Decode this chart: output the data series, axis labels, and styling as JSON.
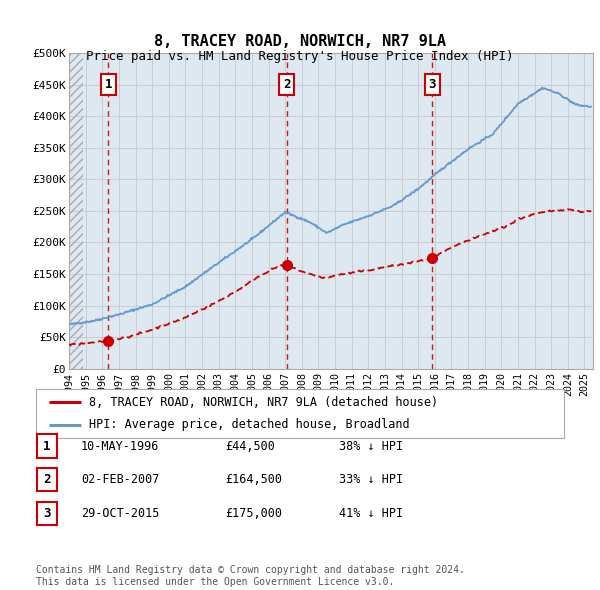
{
  "title": "8, TRACEY ROAD, NORWICH, NR7 9LA",
  "subtitle": "Price paid vs. HM Land Registry's House Price Index (HPI)",
  "ylabel_ticks": [
    "£0",
    "£50K",
    "£100K",
    "£150K",
    "£200K",
    "£250K",
    "£300K",
    "£350K",
    "£400K",
    "£450K",
    "£500K"
  ],
  "ytick_values": [
    0,
    50000,
    100000,
    150000,
    200000,
    250000,
    300000,
    350000,
    400000,
    450000,
    500000
  ],
  "xmin": 1994.0,
  "xmax": 2025.5,
  "ymin": 0,
  "ymax": 500000,
  "sale_dates": [
    1996.36,
    2007.08,
    2015.83
  ],
  "sale_prices": [
    44500,
    164500,
    175000
  ],
  "sale_labels": [
    "1",
    "2",
    "3"
  ],
  "transaction_info": [
    {
      "label": "1",
      "date": "10-MAY-1996",
      "price": "£44,500",
      "pct": "38% ↓ HPI"
    },
    {
      "label": "2",
      "date": "02-FEB-2007",
      "price": "£164,500",
      "pct": "33% ↓ HPI"
    },
    {
      "label": "3",
      "date": "29-OCT-2015",
      "price": "£175,000",
      "pct": "41% ↓ HPI"
    }
  ],
  "legend_entries": [
    {
      "label": "8, TRACEY ROAD, NORWICH, NR7 9LA (detached house)",
      "color": "#cc0000"
    },
    {
      "label": "HPI: Average price, detached house, Broadland",
      "color": "#6699cc"
    }
  ],
  "footnote": "Contains HM Land Registry data © Crown copyright and database right 2024.\nThis data is licensed under the Open Government Licence v3.0.",
  "bg_color": "#dde8f0",
  "grid_color": "#aaaaaa",
  "sale_dot_color": "#cc0000",
  "vline_color": "#cc0000",
  "hpi_line_color": "#6699cc",
  "price_line_color": "#cc0000",
  "hpi_anchors_x": [
    1994.0,
    1995.5,
    1997.0,
    1999.0,
    2001.0,
    2003.0,
    2005.0,
    2007.0,
    2008.5,
    2009.5,
    2010.5,
    2012.0,
    2013.5,
    2015.0,
    2016.5,
    2018.0,
    2019.5,
    2021.0,
    2022.5,
    2023.5,
    2024.5,
    2025.4
  ],
  "hpi_anchors_y": [
    70000,
    76000,
    86000,
    102000,
    130000,
    168000,
    205000,
    248000,
    232000,
    215000,
    228000,
    242000,
    258000,
    285000,
    318000,
    348000,
    372000,
    420000,
    445000,
    435000,
    418000,
    415000
  ],
  "pp_seg1_x": [
    1994.0,
    1994.5,
    1995.0,
    1995.5,
    1996.0,
    1996.36
  ],
  "pp_seg1_y": [
    38000,
    39000,
    40000,
    41500,
    43000,
    44500
  ],
  "pp_seg2_x": [
    1996.36,
    1997.5,
    1999.0,
    2001.0,
    2003.0,
    2004.5,
    2005.5,
    2006.5,
    2007.08
  ],
  "pp_seg2_y": [
    44500,
    50000,
    62000,
    81000,
    107000,
    130000,
    148000,
    161000,
    164500
  ],
  "pp_seg3_x": [
    2007.08,
    2008.0,
    2008.7,
    2009.5,
    2010.0,
    2011.0,
    2012.0,
    2013.0,
    2014.0,
    2015.0,
    2015.83
  ],
  "pp_seg3_y": [
    164500,
    154000,
    148000,
    143000,
    148000,
    152000,
    156000,
    161000,
    165000,
    170000,
    175000
  ],
  "pp_seg4_x": [
    2015.83,
    2016.5,
    2017.5,
    2018.5,
    2019.5,
    2020.5,
    2021.0,
    2022.0,
    2023.0,
    2024.0,
    2025.0,
    2025.4
  ],
  "pp_seg4_y": [
    175000,
    185000,
    198000,
    208000,
    218000,
    228000,
    237000,
    245000,
    250000,
    253000,
    248000,
    250000
  ]
}
